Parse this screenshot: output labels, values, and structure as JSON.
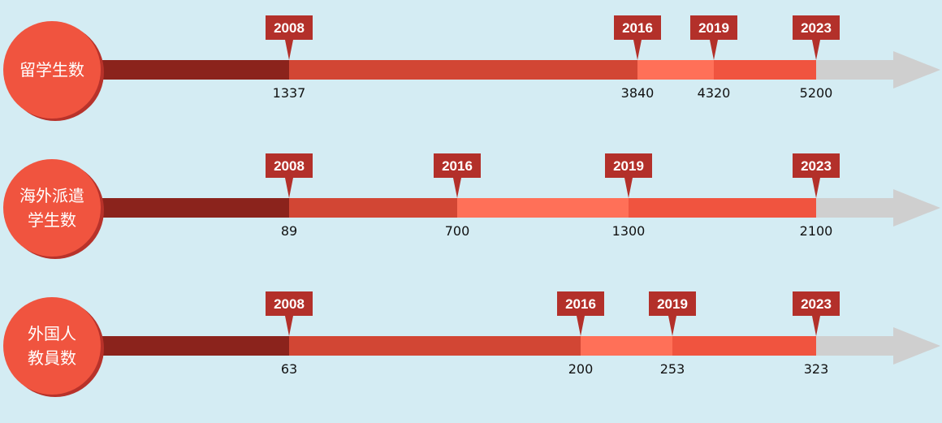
{
  "colors": {
    "background": "#d4ecf3",
    "circle": "#f0543f",
    "circle_shadow": "#b8322a",
    "segment_first": "#8b231c",
    "segment_colors": [
      "#d24634",
      "#ff7058",
      "#f0543f"
    ],
    "arrow": "#cfcfcf",
    "flag": "#b3302a",
    "value_text": "#111111",
    "label_text": "#ffffff"
  },
  "chart_data": [
    {
      "type": "timeline",
      "label_lines": [
        "留学生数"
      ],
      "points": [
        {
          "year": "2008",
          "value": "1337"
        },
        {
          "year": "2016",
          "value": "3840"
        },
        {
          "year": "2019",
          "value": "4320"
        },
        {
          "year": "2023",
          "value": "5200"
        }
      ]
    },
    {
      "type": "timeline",
      "label_lines": [
        "海外派遣",
        "学生数"
      ],
      "points": [
        {
          "year": "2008",
          "value": "89"
        },
        {
          "year": "2016",
          "value": "700"
        },
        {
          "year": "2019",
          "value": "1300"
        },
        {
          "year": "2023",
          "value": "2100"
        }
      ]
    },
    {
      "type": "timeline",
      "label_lines": [
        "外国人",
        "教員数"
      ],
      "points": [
        {
          "year": "2008",
          "value": "63"
        },
        {
          "year": "2016",
          "value": "200"
        },
        {
          "year": "2019",
          "value": "253"
        },
        {
          "year": "2023",
          "value": "323"
        }
      ]
    }
  ]
}
